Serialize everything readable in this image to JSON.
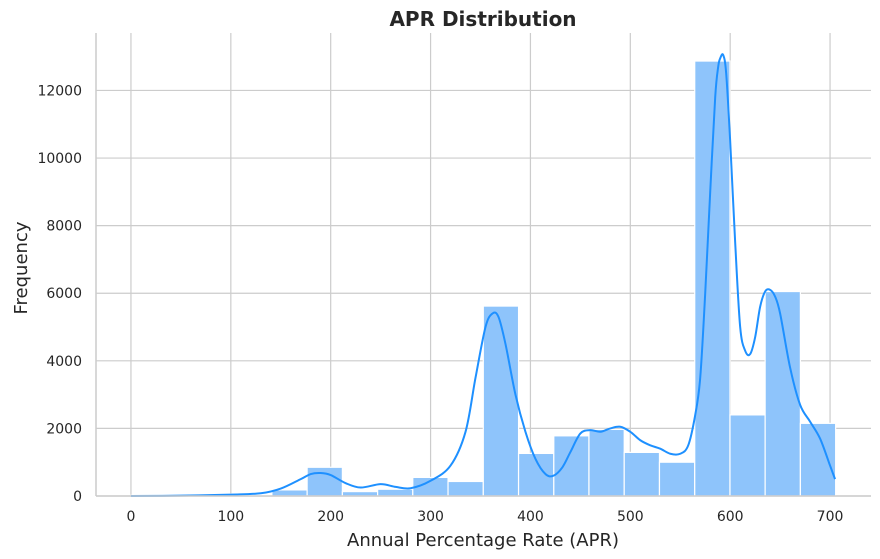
{
  "chart_data": {
    "type": "bar",
    "title": "APR Distribution",
    "xlabel": "Annual Percentage Rate (APR)",
    "ylabel": "Frequency",
    "xlim": [
      -35,
      741
    ],
    "ylim": [
      0,
      13700
    ],
    "xticks": [
      0,
      100,
      200,
      300,
      400,
      500,
      600,
      700
    ],
    "yticks": [
      0,
      2000,
      4000,
      6000,
      8000,
      10000,
      12000
    ],
    "grid": true,
    "colors": {
      "bars": "#8ec4fb",
      "kde": "#1e90ff"
    },
    "bins": [
      {
        "x0": 0,
        "x1": 35.3,
        "count": 20
      },
      {
        "x0": 35.3,
        "x1": 70.6,
        "count": 40
      },
      {
        "x0": 70.6,
        "x1": 105.8,
        "count": 60
      },
      {
        "x0": 105.8,
        "x1": 141.1,
        "count": 30
      },
      {
        "x0": 141.1,
        "x1": 176.4,
        "count": 180
      },
      {
        "x0": 176.4,
        "x1": 211.7,
        "count": 850
      },
      {
        "x0": 211.7,
        "x1": 247.0,
        "count": 130
      },
      {
        "x0": 247.0,
        "x1": 282.2,
        "count": 200
      },
      {
        "x0": 282.2,
        "x1": 317.5,
        "count": 550
      },
      {
        "x0": 317.5,
        "x1": 352.8,
        "count": 430
      },
      {
        "x0": 352.8,
        "x1": 388.1,
        "count": 5620
      },
      {
        "x0": 388.1,
        "x1": 423.4,
        "count": 1260
      },
      {
        "x0": 423.4,
        "x1": 458.6,
        "count": 1780
      },
      {
        "x0": 458.6,
        "x1": 493.9,
        "count": 1970
      },
      {
        "x0": 493.9,
        "x1": 529.2,
        "count": 1290
      },
      {
        "x0": 529.2,
        "x1": 564.5,
        "count": 1000
      },
      {
        "x0": 564.5,
        "x1": 599.8,
        "count": 12870
      },
      {
        "x0": 599.8,
        "x1": 635.0,
        "count": 2400
      },
      {
        "x0": 635.0,
        "x1": 670.3,
        "count": 6050
      },
      {
        "x0": 670.3,
        "x1": 705.6,
        "count": 2150
      }
    ],
    "kde": {
      "x": [
        0,
        50,
        100,
        130,
        150,
        170,
        180,
        190,
        200,
        215,
        230,
        250,
        265,
        280,
        300,
        320,
        335,
        345,
        355,
        362,
        368,
        375,
        385,
        395,
        405,
        415,
        423,
        432,
        440,
        450,
        460,
        470,
        480,
        490,
        500,
        510,
        520,
        530,
        540,
        550,
        558,
        565,
        570,
        575,
        580,
        585,
        588,
        590,
        593,
        596,
        600,
        605,
        610,
        615,
        620,
        625,
        630,
        635,
        640,
        645,
        650,
        660,
        670,
        680,
        690,
        700,
        705
      ],
      "y": [
        0,
        10,
        40,
        80,
        220,
        500,
        650,
        680,
        620,
        380,
        250,
        350,
        270,
        230,
        450,
        900,
        1900,
        3500,
        5000,
        5400,
        5300,
        4500,
        3000,
        1900,
        1100,
        650,
        600,
        850,
        1300,
        1850,
        1950,
        1900,
        2000,
        2050,
        1900,
        1650,
        1500,
        1400,
        1250,
        1250,
        1500,
        2400,
        3500,
        6000,
        9000,
        11800,
        12700,
        12950,
        13050,
        12500,
        10500,
        7500,
        5000,
        4300,
        4200,
        4700,
        5600,
        6050,
        6100,
        5900,
        5400,
        3800,
        2700,
        2200,
        1700,
        900,
        500
      ]
    }
  }
}
